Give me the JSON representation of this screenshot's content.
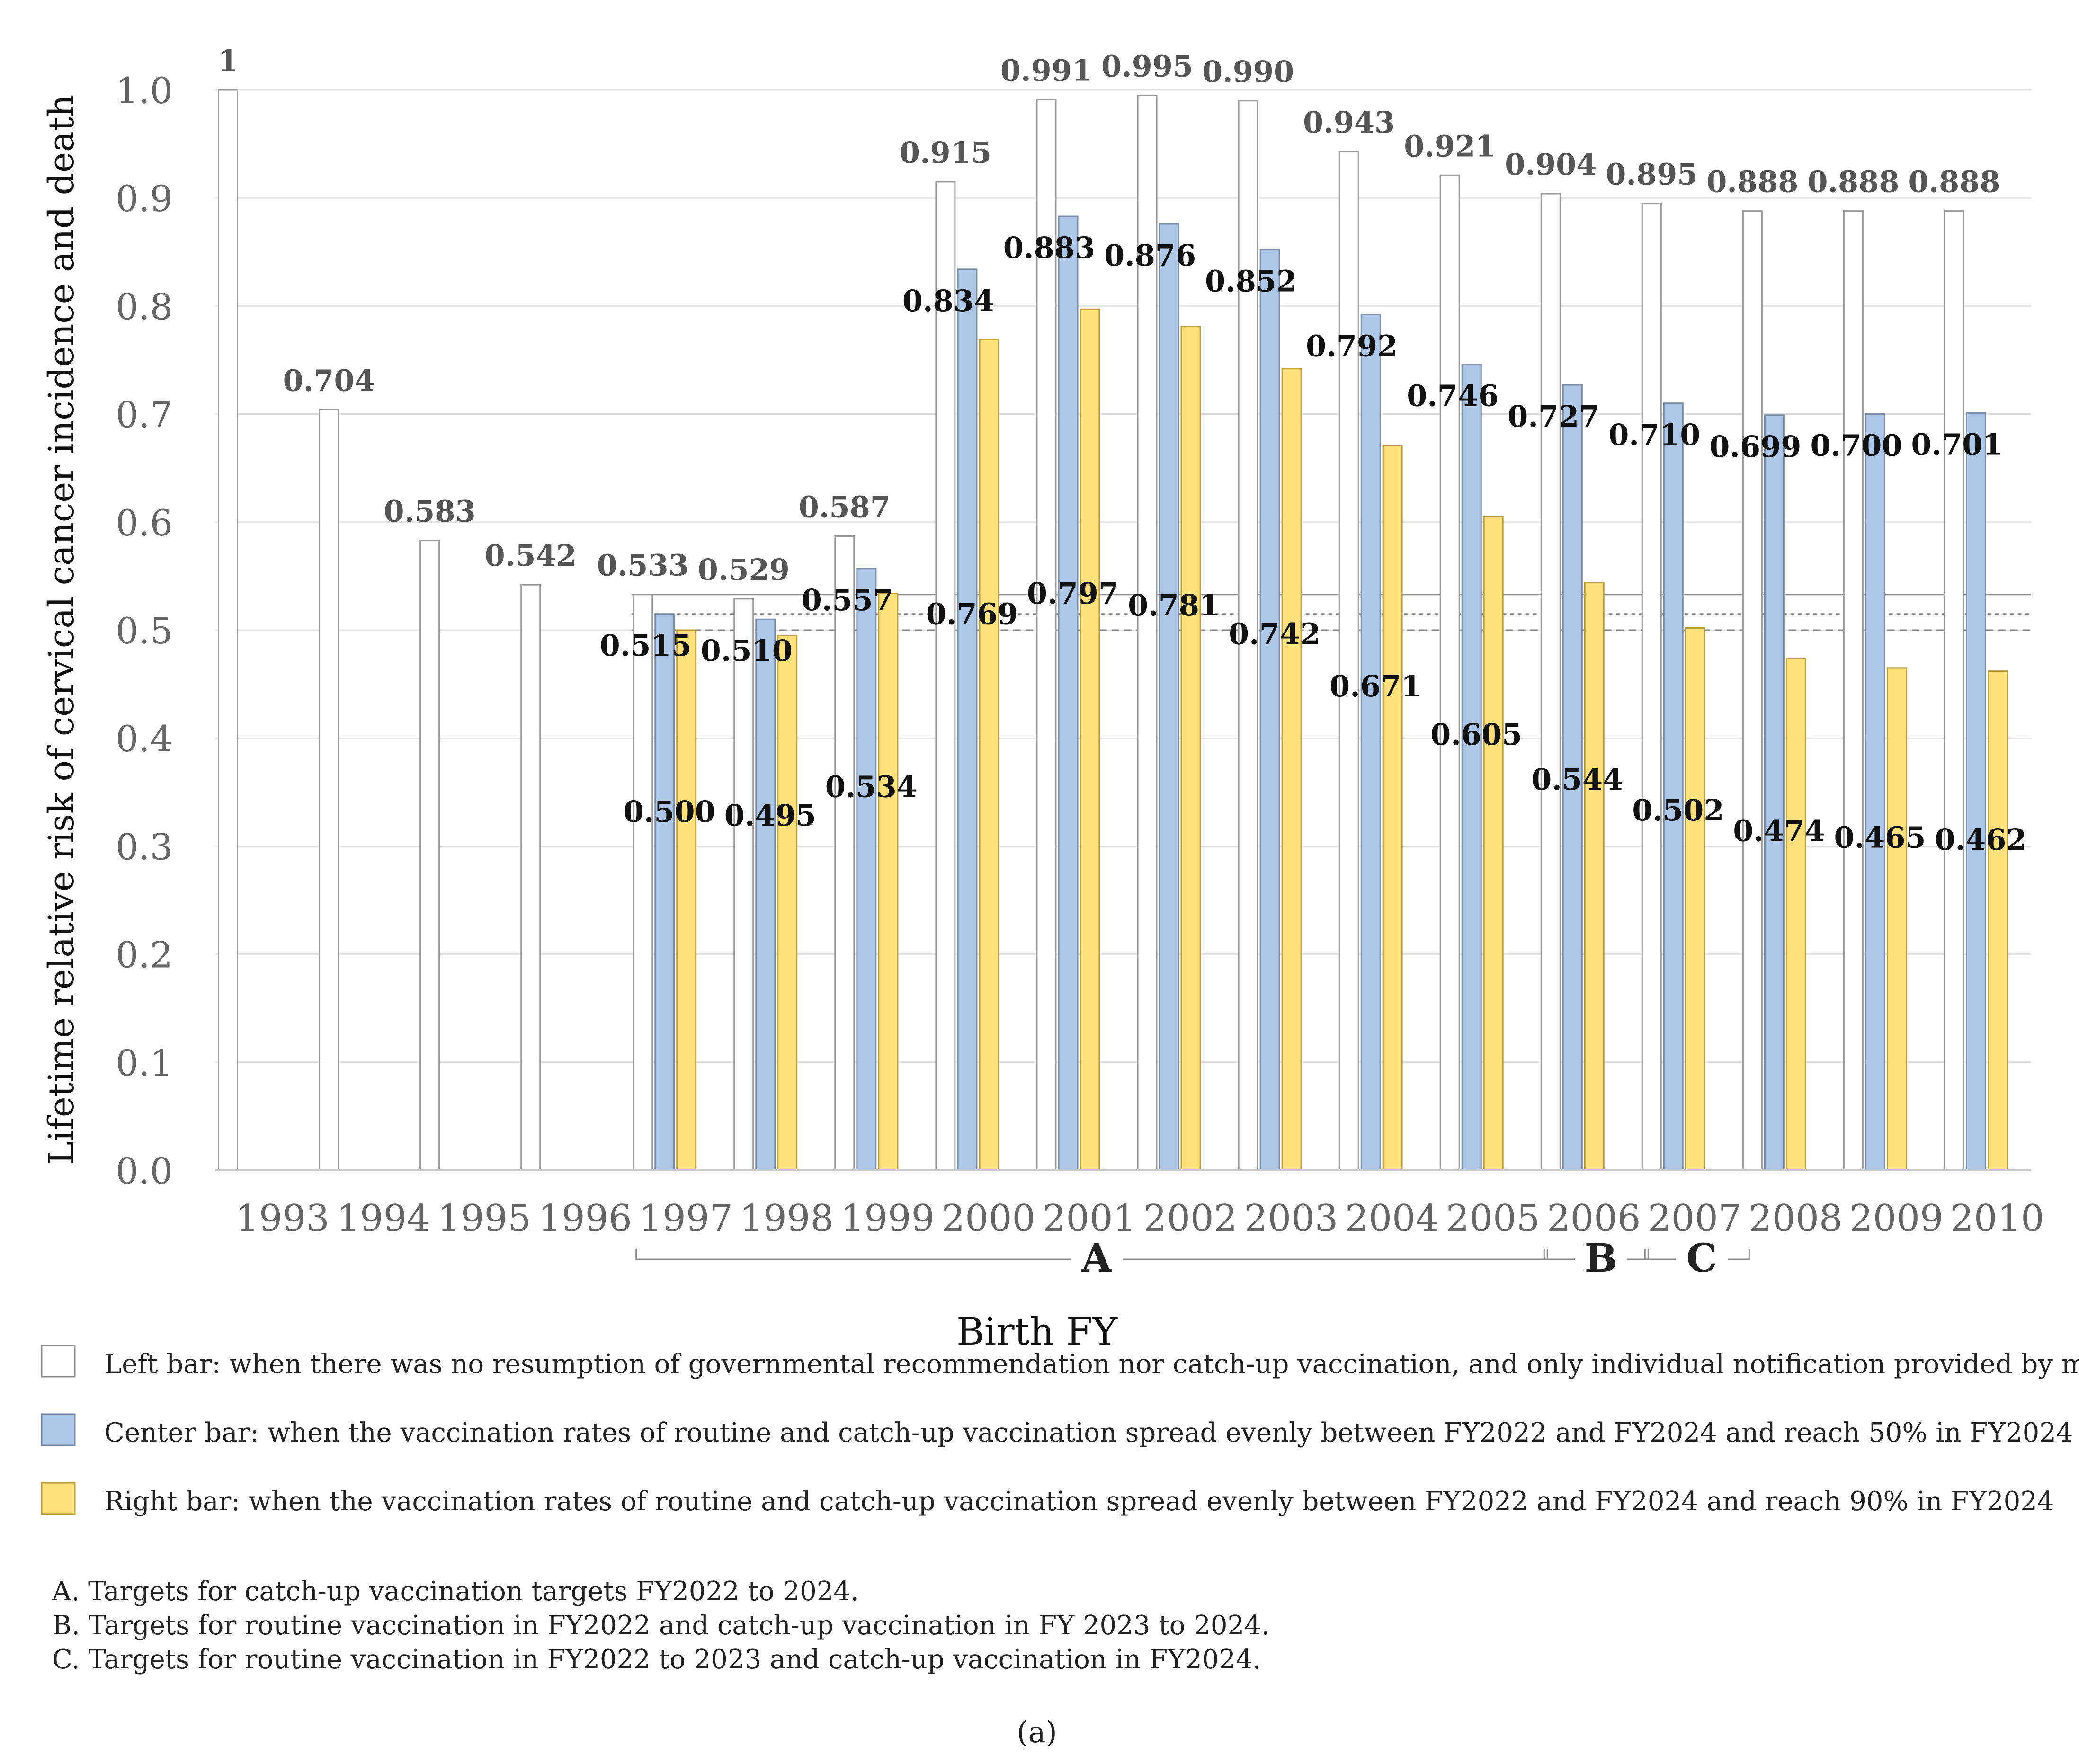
{
  "chart_data": {
    "type": "bar",
    "title": "",
    "xlabel": "Birth FY",
    "ylabel": "Lifetime relative risk of cervical cancer incidence and death",
    "ylim": [
      0,
      1.0
    ],
    "y_ticks": [
      "0.0",
      "0.1",
      "0.2",
      "0.3",
      "0.4",
      "0.5",
      "0.6",
      "0.7",
      "0.8",
      "0.9",
      "1.0"
    ],
    "grid": true,
    "categories": [
      "1993",
      "1994",
      "1995",
      "1996",
      "1997",
      "1998",
      "1999",
      "2000",
      "2001",
      "2002",
      "2003",
      "2004",
      "2005",
      "2006",
      "2007",
      "2008",
      "2009",
      "2010"
    ],
    "series": [
      {
        "values": [
          1,
          0.704,
          0.583,
          0.542,
          0.533,
          0.529,
          0.587,
          0.915,
          0.991,
          0.995,
          0.99,
          0.943,
          0.921,
          0.904,
          0.895,
          0.888,
          0.888,
          0.888
        ],
        "labels": [
          "1",
          "0.704",
          "0.583",
          "0.542",
          "0.533",
          "0.529",
          "0.587",
          "0.915",
          "0.991",
          "0.995",
          "0.990",
          "0.943",
          "0.921",
          "0.904",
          "0.895",
          "0.888",
          "0.888",
          "0.888"
        ],
        "color": "#ffffff"
      },
      {
        "values": [
          null,
          null,
          null,
          null,
          0.515,
          0.51,
          0.557,
          0.834,
          0.883,
          0.876,
          0.852,
          0.792,
          0.746,
          0.727,
          0.71,
          0.699,
          0.7,
          0.701
        ],
        "labels": [
          null,
          null,
          null,
          null,
          "0.515",
          "0.510",
          "0.557",
          "0.834",
          "0.883",
          "0.876",
          "0.852",
          "0.792",
          "0.746",
          "0.727",
          "0.710",
          "0.699",
          "0.700",
          "0.701"
        ],
        "color": "#aec6e8"
      },
      {
        "values": [
          null,
          null,
          null,
          null,
          0.5,
          0.495,
          0.534,
          0.769,
          0.797,
          0.781,
          0.742,
          0.671,
          0.605,
          0.544,
          0.502,
          0.474,
          0.465,
          0.462
        ],
        "labels": [
          null,
          null,
          null,
          null,
          "0.500",
          "0.495",
          "0.534",
          "0.769",
          "0.797",
          "0.781",
          "0.742",
          "0.671",
          "0.605",
          "0.544",
          "0.502",
          "0.474",
          "0.465",
          "0.462"
        ],
        "color": "#ffe07a"
      }
    ],
    "reference_lines": [
      0.533,
      0.515,
      0.5
    ],
    "groups": [
      {
        "label": "A",
        "from": "1997",
        "to": "2005"
      },
      {
        "label": "B",
        "from": "2006",
        "to": "2006"
      },
      {
        "label": "C",
        "from": "2007",
        "to": "2007"
      }
    ],
    "legend": {
      "placement": "bottom",
      "entries": [
        "Left bar: when there was no resumption of governmental recommendation nor catch-up vaccination, and only individual notification provided by mailing.",
        "Center bar: when the vaccination rates of routine and catch-up vaccination spread evenly between FY2022 and FY2024 and reach 50% in FY2024",
        "Right bar: when the vaccination rates of routine and catch-up vaccination spread evenly between FY2022 and FY2024 and reach 90% in FY2024"
      ]
    },
    "notes": [
      "A.  Targets for catch-up vaccination targets FY2022 to 2024.",
      "B.  Targets for routine vaccination in FY2022 and catch-up vaccination in FY 2023 to 2024.",
      "C.  Targets for routine vaccination in FY2022 to 2023 and catch-up vaccination in FY2024."
    ],
    "caption": "(a)"
  }
}
